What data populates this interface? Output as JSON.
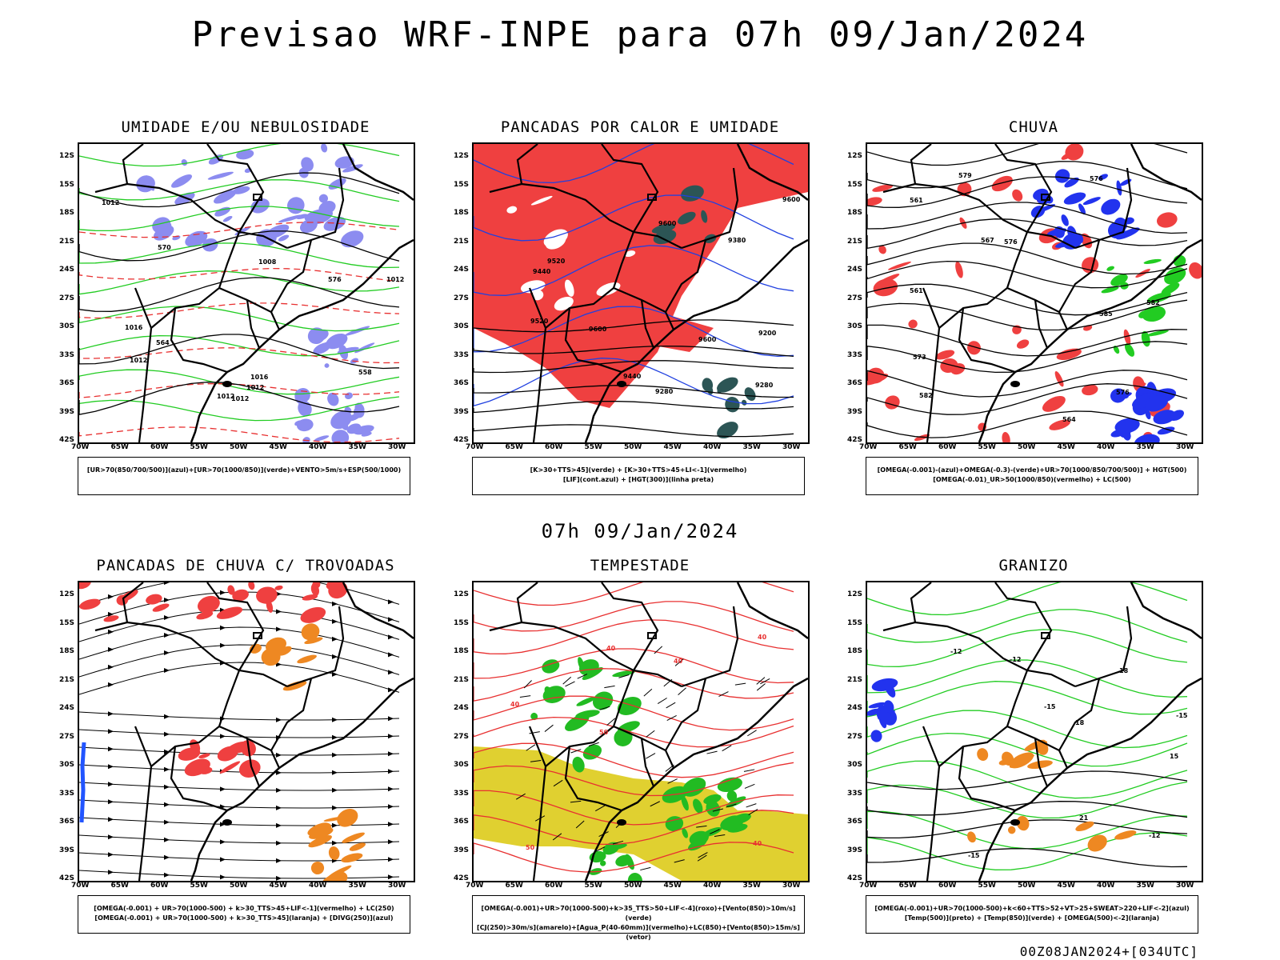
{
  "header": {
    "title": "Previsao WRF-INPE  para 07h 09/Jan/2024"
  },
  "middle": {
    "title": "07h 09/Jan/2024"
  },
  "footer": {
    "run": "00Z08JAN2024+[034UTC]"
  },
  "axes": {
    "lat_ticks": [
      "12S",
      "15S",
      "18S",
      "21S",
      "24S",
      "27S",
      "30S",
      "33S",
      "36S",
      "39S",
      "42S"
    ],
    "lon_ticks": [
      "70W",
      "65W",
      "60W",
      "55W",
      "50W",
      "45W",
      "40W",
      "35W",
      "30W"
    ]
  },
  "colors": {
    "blue_shade": "#8c8cf0",
    "green_contour": "#22cc22",
    "red_contour": "#e83030",
    "red_fill": "#ef4040",
    "yellow_fill": "#e0d030",
    "orange_fill": "#ee8822",
    "dark_teal": "#2c5555"
  },
  "panels": [
    {
      "id": "umidade",
      "title": "UMIDADE E/OU NEBULOSIDADE",
      "legend_line1": "[UR>70(850/700/500)](azul)+[UR>70(1000/850)](verde)+VENTO>5m/s+ESP(500/1000)",
      "legend_line2": "",
      "contour_labels": [
        "1012",
        "1016",
        "1008",
        "1012",
        "1012",
        "1012",
        "1012",
        "1016",
        "576",
        "570",
        "564",
        "558",
        "1012"
      ]
    },
    {
      "id": "pancadas-calor",
      "title": "PANCADAS POR CALOR E UMIDADE",
      "legend_line1": "[K>30+TTS>45](verde)  +  [K>30+TTS>45+LI<-1](vermelho)",
      "legend_line2": "[LIF](cont.azul)  +  [HGT(300)](linha preta)",
      "contour_labels": [
        "9600",
        "9600",
        "9600",
        "9520",
        "9520",
        "9440",
        "9380",
        "9280",
        "9280",
        "9200",
        "9440",
        "9600"
      ]
    },
    {
      "id": "chuva",
      "title": "CHUVA",
      "legend_line1": "[OMEGA(-0.001)-(azul)+OMEGA(-0.3)-(verde)+UR>70(1000/850/700/500)]  +  HGT(500)",
      "legend_line2": "[OMEGA(-0.01)_UR>50(1000/850)(vermelho)  +  LC(500)",
      "contour_labels": [
        "585",
        "582",
        "582",
        "579",
        "576",
        "576",
        "573",
        "576",
        "567",
        "564",
        "561",
        "561"
      ]
    },
    {
      "id": "trovoadas",
      "title": "PANCADAS DE CHUVA C/ TROVOADAS",
      "legend_line1": "[OMEGA(-0.001)  +  UR>70(1000-500)  +  k>30_TTS>45+LIF<-1](vermelho)  +  LC(250)",
      "legend_line2": "[OMEGA(-0.001)  +  UR>70(1000-500)  +  k>30_TTS>45](laranja)  +  [DIVG(250)](azul)",
      "contour_labels": []
    },
    {
      "id": "tempestade",
      "title": "TEMPESTADE",
      "legend_line1": "[OMEGA(-0.001)+UR>70(1000-500)+k>35_TTS>50+LIF<-4](roxo)+[Vento(850)>10m/s](verde)",
      "legend_line2": "[CJ(250)>30m/s](amarelo)+[Agua_P(40-60mm)](vermelho)+LC(850)+[Vento(850)>15m/s](vetor)",
      "contour_labels": [
        "40",
        "40",
        "40",
        "50",
        "40",
        "50",
        "40"
      ]
    },
    {
      "id": "granizo",
      "title": "GRANIZO",
      "legend_line1": "[OMEGA(-0.001)+UR>70(1000-500)+k<60+TTS>52+VT>25+SWEAT>220+LIF<-2](azul)",
      "legend_line2": "[Temp(500)](preto)  +  [Temp(850)](verde)  +  [OMEGA(500)<-2](laranja)",
      "contour_labels": [
        "15",
        "21",
        "18",
        "-12",
        "-12",
        "-15",
        "-15",
        "-12",
        "-15",
        "18"
      ]
    }
  ]
}
